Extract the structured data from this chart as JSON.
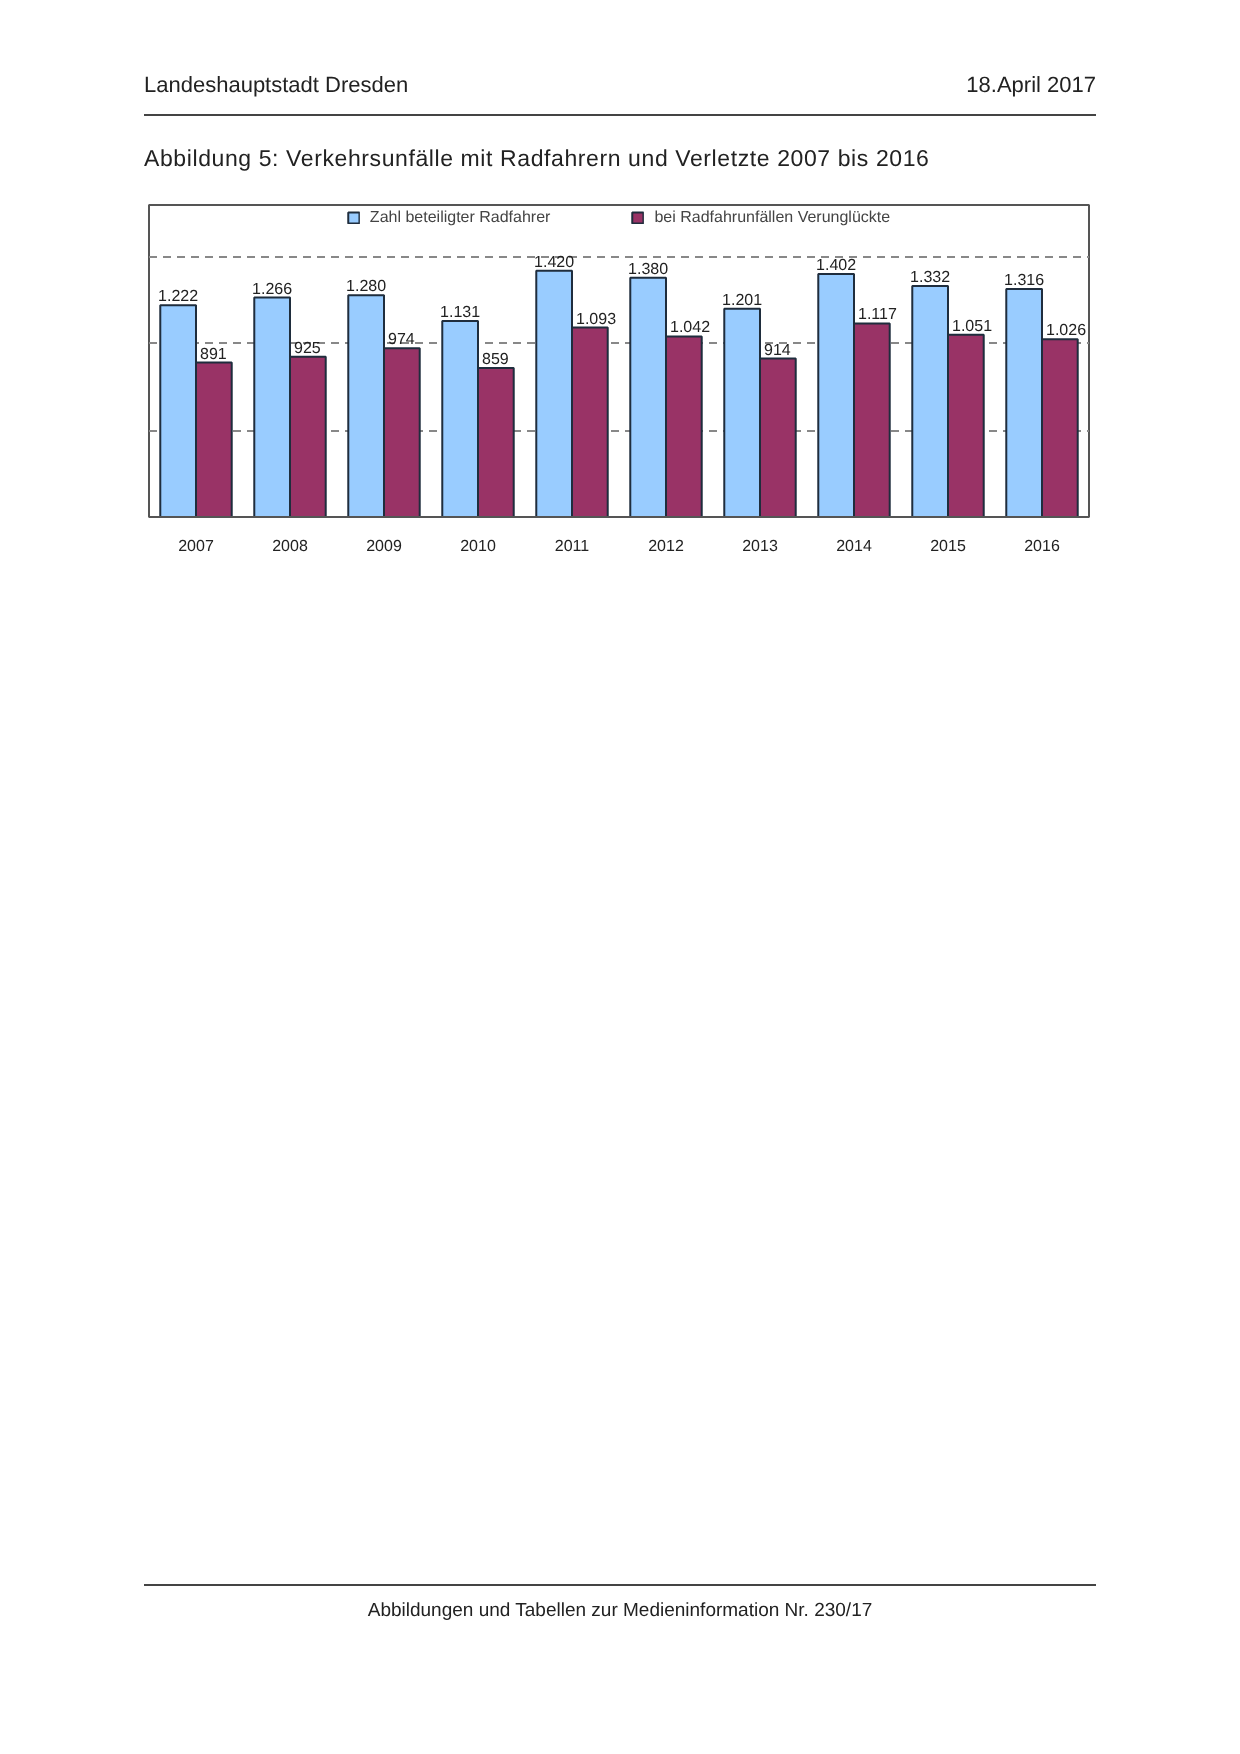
{
  "chart_data": {
    "type": "bar",
    "title": "Abbildung 5: Verkehrsunfälle mit Radfahrern und Verletzte 2007 bis 2016",
    "annotations": [
      "Landeshauptstadt Dresden",
      "18.April 2017",
      "Abbildungen und Tabellen zur Medieninformation Nr. 230/17"
    ],
    "categories": [
      "2007",
      "2008",
      "2009",
      "2010",
      "2011",
      "2012",
      "2013",
      "2014",
      "2015",
      "2016"
    ],
    "series": [
      {
        "name": "Zahl beteiligter Radfahrer",
        "color": "#99ccff",
        "values": [
          1222,
          1266,
          1280,
          1131,
          1420,
          1380,
          1201,
          1402,
          1332,
          1316
        ],
        "value_labels": [
          "1.222",
          "1.266",
          "1.280",
          "1.131",
          "1.420",
          "1.380",
          "1.201",
          "1.402",
          "1.332",
          "1.316"
        ]
      },
      {
        "name": "bei Radfahrunfällen Verunglückte",
        "color": "#993366",
        "values": [
          891,
          925,
          974,
          859,
          1093,
          1042,
          914,
          1117,
          1051,
          1026
        ],
        "value_labels": [
          "891",
          "925",
          "974",
          "859",
          "1.093",
          "1.042",
          "914",
          "1.117",
          "1.051",
          "1.026"
        ]
      }
    ],
    "ylim": [
      0,
      1800
    ],
    "yticks": [
      {
        "value": 0,
        "label": null
      },
      {
        "value": 500,
        "label": null
      },
      {
        "value": 1000,
        "label": null
      },
      {
        "value": 1500,
        "label": null
      }
    ],
    "tick_labels": "x",
    "grid": "y",
    "legend": "top"
  }
}
